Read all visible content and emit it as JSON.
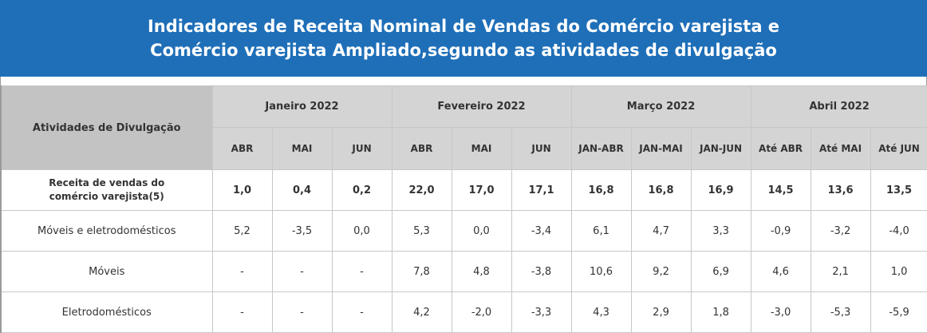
{
  "title": {
    "line1": "Indicadores de Receita Nominal de Vendas do Comércio varejista e",
    "line2": "Comércio varejista Ampliado,segundo as atividades de divulgação"
  },
  "table": {
    "row_header": "Atividades de Divulgação",
    "months": [
      "Janeiro 2022",
      "Fevereiro 2022",
      "Março 2022",
      "Abril 2022"
    ],
    "subheaders": [
      "ABR",
      "MAI",
      "JUN",
      "ABR",
      "MAI",
      "JUN",
      "JAN-ABR",
      "JAN-MAI",
      "JAN-JUN",
      "Até ABR",
      "Até MAI",
      "Até JUN"
    ],
    "rows": [
      {
        "label_line1": "Receita de vendas do",
        "label_line2": "comércio varejista(5)",
        "values": [
          "1,0",
          "0,4",
          "0,2",
          "22,0",
          "17,0",
          "17,1",
          "16,8",
          "16,8",
          "16,9",
          "14,5",
          "13,6",
          "13,5"
        ]
      },
      {
        "label": "Móveis e eletrodomésticos",
        "values": [
          "5,2",
          "-3,5",
          "0,0",
          "5,3",
          "0,0",
          "-3,4",
          "6,1",
          "4,7",
          "3,3",
          "-0,9",
          "-3,2",
          "-4,0"
        ]
      },
      {
        "label": "Móveis",
        "values": [
          "-",
          "-",
          "-",
          "7,8",
          "4,8",
          "-3,8",
          "10,6",
          "9,2",
          "6,9",
          "4,6",
          "2,1",
          "1,0"
        ]
      },
      {
        "label": "Eletrodomésticos",
        "values": [
          "-",
          "-",
          "-",
          "4,2",
          "-2,0",
          "-3,3",
          "4,3",
          "2,9",
          "1,8",
          "-3,0",
          "-5,3",
          "-5,9"
        ]
      }
    ]
  }
}
